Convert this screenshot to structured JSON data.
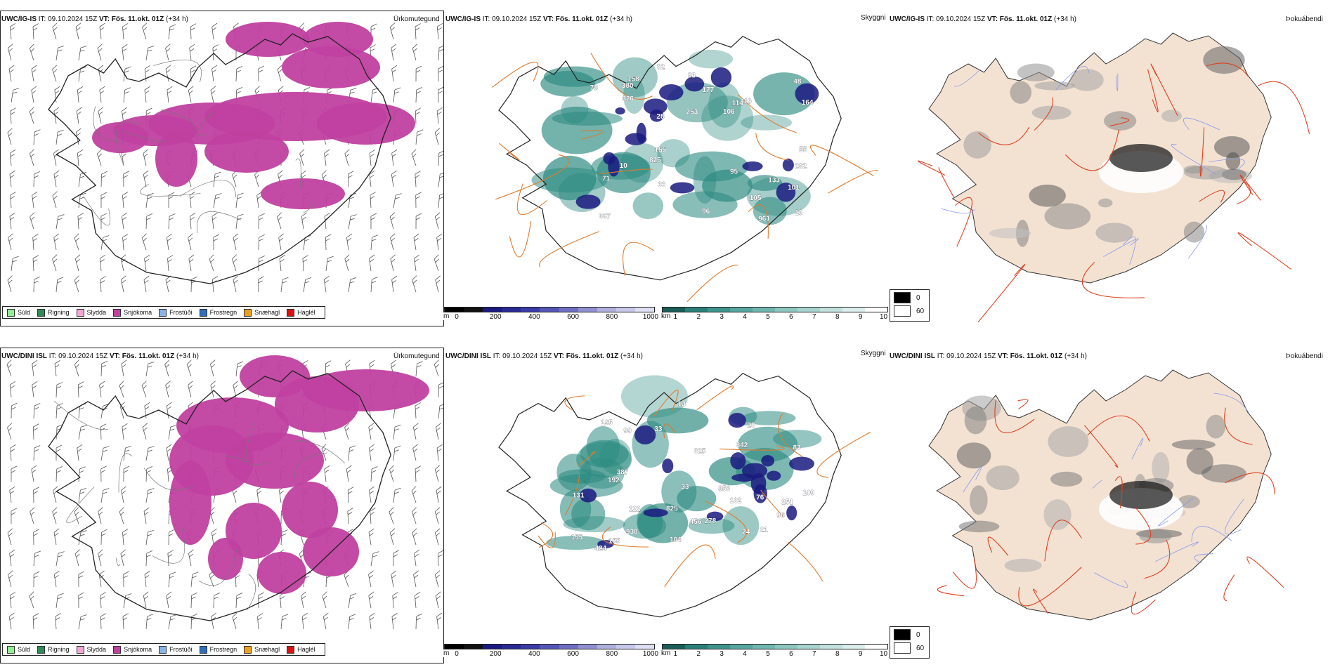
{
  "rows": [
    {
      "model": "UWC/IG-IS",
      "it_label": "IT:",
      "it_value": "09.10.2024 15Z",
      "vt_label": "VT:",
      "vt_value": "Fös. 11.okt. 01Z",
      "lead": "(+34 h)",
      "titles": {
        "precip": "Úrkomutegund",
        "cloud": "Skyggni",
        "fog": "Þokuábendi"
      },
      "cloud_labels": [
        "326",
        "48",
        "101",
        "78",
        "155",
        "32",
        "18",
        "10",
        "28",
        "337",
        "133",
        "158",
        "55",
        "177",
        "825",
        "961",
        "119",
        "164",
        "292",
        "106",
        "253",
        "105",
        "95",
        "380",
        "96",
        "71",
        "83",
        "114",
        "33"
      ]
    },
    {
      "model": "UWC/DINI ISL",
      "it_label": "IT:",
      "it_value": "09.10.2024 15Z",
      "vt_label": "VT:",
      "vt_value": "Fös. 11.okt. 01Z",
      "lead": "(+34 h)",
      "titles": {
        "precip": "Úrkomutegund",
        "cloud": "Skyggni",
        "fog": "Þokuábendi"
      },
      "cloud_labels": [
        "192",
        "195",
        "325",
        "278",
        "930",
        "342",
        "825",
        "251",
        "387",
        "131",
        "104",
        "33",
        "24",
        "155",
        "456",
        "96",
        "13",
        "109",
        "76",
        "856",
        "424",
        "21",
        "155",
        "99",
        "122",
        "83",
        "132",
        "33",
        "20"
      ]
    }
  ],
  "precip_legend": [
    {
      "label": "Súld",
      "color": "#90ee90"
    },
    {
      "label": "Rigning",
      "color": "#2e8b57"
    },
    {
      "label": "Slydda",
      "color": "#f4a6d7"
    },
    {
      "label": "Snjókoma",
      "color": "#c040a0"
    },
    {
      "label": "Frostúði",
      "color": "#87b5ea"
    },
    {
      "label": "Frostregn",
      "color": "#2f6fc0"
    },
    {
      "label": "Snæhagl",
      "color": "#f0a020"
    },
    {
      "label": "Haglél",
      "color": "#e01010"
    }
  ],
  "cloudbase_scale": {
    "unit": "m",
    "ticks": [
      "0",
      "200",
      "400",
      "600",
      "800",
      "1000"
    ]
  },
  "visibility_scale": {
    "unit": "km",
    "ticks": [
      "1",
      "2",
      "3",
      "4",
      "5",
      "6",
      "7",
      "8",
      "9",
      "10"
    ]
  },
  "fog_scale": {
    "ticks": [
      "0",
      "60"
    ]
  },
  "colors": {
    "snow": "#c040a0",
    "cloudbase_dark": "#1a1a80",
    "visibility_teal": "#2b8a80",
    "roads": "#e07a2a",
    "roads_red": "#e04020",
    "land_beige": "#f3e2d2",
    "glacier_white": "#ffffff"
  }
}
